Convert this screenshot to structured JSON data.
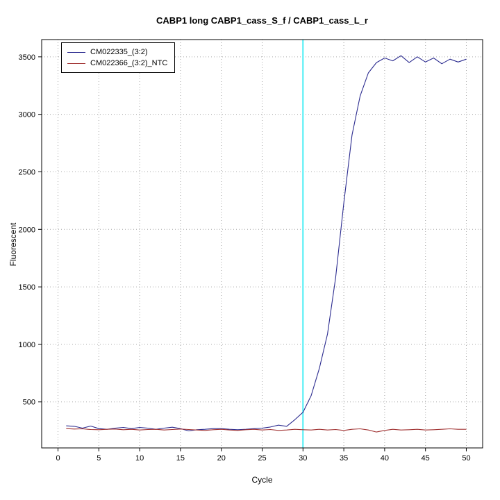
{
  "chart_data": {
    "type": "line",
    "title": "CABP1 long CABP1_cass_S_f / CABP1_cass_L_r",
    "xlabel": "Cycle",
    "ylabel": "Fluorescent",
    "xlim": [
      -2,
      52
    ],
    "ylim": [
      100,
      3650
    ],
    "xticks": [
      0,
      5,
      10,
      15,
      20,
      25,
      30,
      35,
      40,
      45,
      50
    ],
    "yticks": [
      500,
      1000,
      1500,
      2000,
      2500,
      3000,
      3500
    ],
    "grid": "dotted",
    "legend_position": "top-left",
    "threshold_line": {
      "x": 30,
      "color": "#6ff2f7"
    },
    "x": [
      1,
      2,
      3,
      4,
      5,
      6,
      7,
      8,
      9,
      10,
      11,
      12,
      13,
      14,
      15,
      16,
      17,
      18,
      19,
      20,
      21,
      22,
      23,
      24,
      25,
      26,
      27,
      28,
      29,
      30,
      31,
      32,
      33,
      34,
      35,
      36,
      37,
      38,
      39,
      40,
      41,
      42,
      43,
      44,
      45,
      46,
      47,
      48,
      49,
      50
    ],
    "series": [
      {
        "name": "CM022335_(3:2)",
        "color": "#2b2b8f",
        "values": [
          292,
          288,
          272,
          290,
          268,
          262,
          272,
          278,
          268,
          278,
          272,
          262,
          272,
          280,
          268,
          248,
          258,
          262,
          268,
          268,
          262,
          258,
          262,
          268,
          272,
          282,
          298,
          288,
          345,
          410,
          555,
          790,
          1090,
          1580,
          2230,
          2820,
          3160,
          3360,
          3450,
          3490,
          3465,
          3510,
          3450,
          3500,
          3455,
          3490,
          3440,
          3480,
          3455,
          3480
        ]
      },
      {
        "name": "CM022366_(3:2)_NTC",
        "color": "#a03232",
        "values": [
          268,
          264,
          266,
          260,
          258,
          262,
          264,
          258,
          262,
          256,
          260,
          262,
          256,
          260,
          264,
          260,
          256,
          252,
          258,
          262,
          256,
          252,
          258,
          262,
          256,
          260,
          252,
          256,
          262,
          258,
          256,
          262,
          256,
          260,
          252,
          262,
          266,
          256,
          238,
          252,
          262,
          256,
          258,
          262,
          256,
          258,
          262,
          266,
          262,
          262
        ]
      }
    ]
  }
}
